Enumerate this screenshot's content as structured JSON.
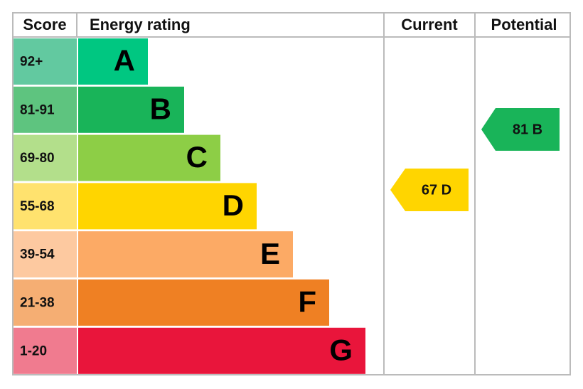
{
  "headers": [
    "Score",
    "Energy rating",
    "Current",
    "Potential"
  ],
  "bands": [
    {
      "score": "92+",
      "rating": "A"
    },
    {
      "score": "81-91",
      "rating": "B"
    },
    {
      "score": "69-80",
      "rating": "C"
    },
    {
      "score": "55-68",
      "rating": "D"
    },
    {
      "score": "39-54",
      "rating": "E"
    },
    {
      "score": "21-38",
      "rating": "F"
    },
    {
      "score": "1-20",
      "rating": "G"
    }
  ],
  "current": "67 D",
  "potential": "81 B"
}
